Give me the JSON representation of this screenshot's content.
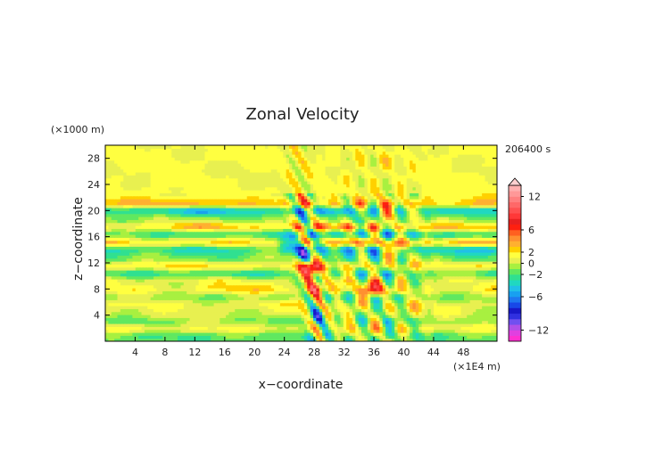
{
  "chart_data": {
    "type": "heatmap",
    "title": "Zonal Velocity",
    "xlabel": "x−coordinate",
    "ylabel": "z−coordinate",
    "x_unit": "(×1E4 m)",
    "y_unit": "(×1000 m)",
    "time_label": "206400 s",
    "xlim": [
      0,
      52.5
    ],
    "ylim": [
      0,
      30
    ],
    "x_ticks": [
      4,
      8,
      12,
      16,
      20,
      24,
      28,
      32,
      36,
      40,
      44,
      48
    ],
    "y_ticks": [
      4,
      8,
      12,
      16,
      20,
      24,
      28
    ],
    "x_tick_labels": [
      "4",
      "8",
      "12",
      "16",
      "20",
      "24",
      "28",
      "32",
      "36",
      "40",
      "44",
      "48"
    ],
    "y_tick_labels": [
      "4",
      "8",
      "12",
      "16",
      "20",
      "24",
      "28"
    ],
    "colorbar": {
      "levels": [
        -14,
        -13,
        -12,
        -11,
        -10,
        -9,
        -8,
        -7,
        -6,
        -5,
        -4,
        -3,
        -2,
        -1,
        0,
        1,
        2,
        3,
        4,
        5,
        6,
        7,
        8,
        9,
        10,
        11,
        12,
        13,
        14
      ],
      "colors": [
        "#ff30d0",
        "#e040e0",
        "#b050e8",
        "#7050f0",
        "#3030e0",
        "#1818c8",
        "#1848e8",
        "#1e78f0",
        "#18a0f0",
        "#20c0e8",
        "#20d8c0",
        "#30e090",
        "#60e860",
        "#a8f040",
        "#e8f050",
        "#ffff40",
        "#ffd000",
        "#ffb030",
        "#ff9030",
        "#ff6020",
        "#ff2010",
        "#e82020",
        "#ff3838",
        "#ff5050",
        "#ff6868",
        "#ff8080",
        "#ff9898",
        "#ffb0b0"
      ],
      "labels": [
        "12",
        "6",
        "2",
        "0",
        "−2",
        "−6",
        "−12"
      ],
      "label_values": [
        12,
        6,
        2,
        0,
        -2,
        -6,
        -12
      ],
      "extend": "max"
    },
    "bands": [
      {
        "z": 0.8,
        "value": -2.0
      },
      {
        "z": 2.0,
        "value": 1.2
      },
      {
        "z": 3.2,
        "value": -1.0
      },
      {
        "z": 4.4,
        "value": 0.6
      },
      {
        "z": 5.6,
        "value": 1.5
      },
      {
        "z": 6.8,
        "value": -0.8
      },
      {
        "z": 8.0,
        "value": 2.0
      },
      {
        "z": 9.2,
        "value": 1.0
      },
      {
        "z": 10.4,
        "value": -2.5
      },
      {
        "z": 11.6,
        "value": 2.2
      },
      {
        "z": 12.8,
        "value": -1.5
      },
      {
        "z": 14.0,
        "value": -4.0
      },
      {
        "z": 15.2,
        "value": 3.0
      },
      {
        "z": 16.4,
        "value": -3.0
      },
      {
        "z": 17.6,
        "value": 3.5
      },
      {
        "z": 18.8,
        "value": -1.0
      },
      {
        "z": 20.0,
        "value": -4.5
      },
      {
        "z": 21.2,
        "value": 3.5
      },
      {
        "z": 22.4,
        "value": 1.5
      },
      {
        "z": 23.6,
        "value": 0.8
      },
      {
        "z": 24.8,
        "value": 1.0
      },
      {
        "z": 26.0,
        "value": 0.6
      },
      {
        "z": 27.2,
        "value": 1.2
      },
      {
        "z": 28.4,
        "value": 1.0
      },
      {
        "z": 29.6,
        "value": 0.7
      }
    ],
    "features": [
      {
        "x": 27.5,
        "z": 11.0,
        "value": 12
      },
      {
        "x": 26.8,
        "z": 13.5,
        "value": -6
      },
      {
        "x": 28.3,
        "z": 8.0,
        "value": 5
      },
      {
        "x": 28.5,
        "z": 4.0,
        "value": -5
      },
      {
        "x": 24.5,
        "z": 15.0,
        "value": -5
      },
      {
        "x": 36.0,
        "z": 8.0,
        "value": 5
      },
      {
        "x": 38.0,
        "z": 6.0,
        "value": -4
      },
      {
        "x": 37.5,
        "z": 19.8,
        "value": 4
      },
      {
        "x": 39.0,
        "z": 14.0,
        "value": 4
      }
    ]
  }
}
